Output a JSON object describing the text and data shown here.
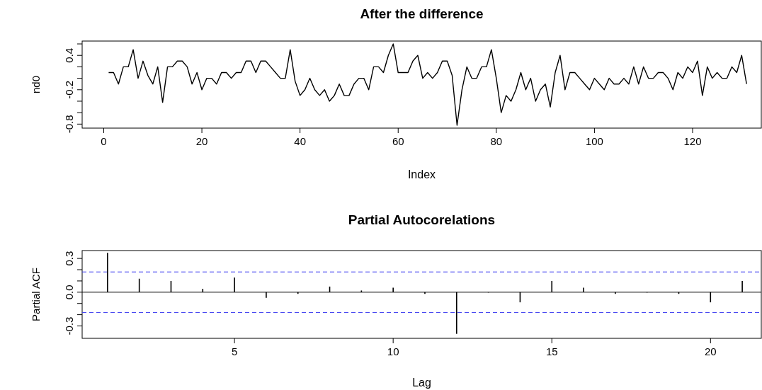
{
  "chart_data": [
    {
      "type": "line",
      "title": "After the difference",
      "xlabel": "Index",
      "ylabel": "nd0",
      "x": [
        1,
        2,
        3,
        4,
        5,
        6,
        7,
        8,
        9,
        10,
        11,
        12,
        13,
        14,
        15,
        16,
        17,
        18,
        19,
        20,
        21,
        22,
        23,
        24,
        25,
        26,
        27,
        28,
        29,
        30,
        31,
        32,
        33,
        34,
        35,
        36,
        37,
        38,
        39,
        40,
        41,
        42,
        43,
        44,
        45,
        46,
        47,
        48,
        49,
        50,
        51,
        52,
        53,
        54,
        55,
        56,
        57,
        58,
        59,
        60,
        61,
        62,
        63,
        64,
        65,
        66,
        67,
        68,
        69,
        70,
        71,
        72,
        73,
        74,
        75,
        76,
        77,
        78,
        79,
        80,
        81,
        82,
        83,
        84,
        85,
        86,
        87,
        88,
        89,
        90,
        91,
        92,
        93,
        94,
        95,
        96,
        97,
        98,
        99,
        100,
        101,
        102,
        103,
        104,
        105,
        106,
        107,
        108,
        109,
        110,
        111,
        112,
        113,
        114,
        115,
        116,
        117,
        118,
        119,
        120,
        121,
        122,
        123,
        124,
        125,
        126,
        127,
        128,
        129,
        130,
        131
      ],
      "series": [
        {
          "color": "#000000",
          "values": [
            0.1,
            0.1,
            -0.1,
            0.2,
            0.2,
            0.5,
            0,
            0.3,
            0.05,
            -0.1,
            0.2,
            -0.42,
            0.2,
            0.2,
            0.3,
            0.3,
            0.2,
            -0.1,
            0.1,
            -0.2,
            0,
            0,
            -0.1,
            0.1,
            0.1,
            0,
            0.1,
            0.1,
            0.3,
            0.3,
            0.1,
            0.3,
            0.3,
            0.2,
            0.1,
            0,
            0,
            0.5,
            -0.05,
            -0.3,
            -0.2,
            0,
            -0.2,
            -0.3,
            -0.2,
            -0.4,
            -0.3,
            -0.1,
            -0.3,
            -0.3,
            -0.1,
            0,
            0,
            -0.2,
            0.2,
            0.2,
            0.1,
            0.4,
            0.6,
            0.1,
            0.1,
            0.1,
            0.3,
            0.4,
            0,
            0.1,
            0,
            0.1,
            0.3,
            0.3,
            0.05,
            -0.82,
            -0.2,
            0.2,
            0,
            0,
            0.2,
            0.2,
            0.5,
            0,
            -0.6,
            -0.3,
            -0.4,
            -0.2,
            0.1,
            -0.2,
            0,
            -0.4,
            -0.2,
            -0.1,
            -0.5,
            0.1,
            0.4,
            -0.2,
            0.1,
            0.1,
            0,
            -0.1,
            -0.2,
            0,
            -0.1,
            -0.2,
            0,
            -0.1,
            -0.1,
            0,
            -0.1,
            0.2,
            -0.1,
            0.2,
            0,
            0,
            0.1,
            0.1,
            0,
            -0.2,
            0.1,
            0,
            0.2,
            0.1,
            0.3,
            -0.3,
            0.2,
            0,
            0.1,
            0,
            0,
            0.2,
            0.1,
            0.4,
            -0.1
          ]
        }
      ],
      "xlim": [
        -4.4,
        134
      ],
      "xticks": [
        0,
        20,
        40,
        60,
        80,
        100,
        120
      ],
      "ylim": [
        -0.87,
        0.65
      ],
      "yticks": [
        {
          "value": -0.8,
          "label": "-0.8"
        },
        {
          "value": -0.6,
          "label": null
        },
        {
          "value": -0.4,
          "label": null
        },
        {
          "value": -0.2,
          "label": "-0.2"
        },
        {
          "value": 0,
          "label": null
        },
        {
          "value": 0.2,
          "label": null
        },
        {
          "value": 0.4,
          "label": "0.4"
        },
        {
          "value": 0.6,
          "label": null
        }
      ]
    },
    {
      "type": "bar",
      "title": "Partial Autocorelations",
      "xlabel": "Lag",
      "ylabel": "Partial ACF",
      "x": [
        1,
        2,
        3,
        4,
        5,
        6,
        7,
        8,
        9,
        10,
        11,
        12,
        13,
        14,
        15,
        16,
        17,
        18,
        19,
        20,
        21
      ],
      "series": [
        {
          "color": "#000000",
          "values": [
            0.35,
            0.12,
            0.1,
            0.03,
            0.13,
            -0.05,
            -0.015,
            0.05,
            0.015,
            0.04,
            -0.015,
            -0.37,
            0,
            -0.09,
            0.1,
            0.04,
            -0.015,
            0,
            -0.015,
            -0.09,
            0.1
          ]
        }
      ],
      "xlim": [
        0.2,
        21.6
      ],
      "xticks": [
        5,
        10,
        15,
        20
      ],
      "ylim": [
        -0.41,
        0.37
      ],
      "yticks": [
        {
          "value": -0.3,
          "label": "-0.3"
        },
        {
          "value": -0.2,
          "label": null
        },
        {
          "value": -0.1,
          "label": null
        },
        {
          "value": 0,
          "label": "0.0"
        },
        {
          "value": 0.1,
          "label": null
        },
        {
          "value": 0.2,
          "label": null
        },
        {
          "value": 0.3,
          "label": "0.3"
        }
      ],
      "ref_lines": [
        {
          "axis": "y",
          "value": 0,
          "color": "#000000",
          "line_style": "solid"
        },
        {
          "axis": "y",
          "value": 0.18,
          "color": "#3b3bf0",
          "line_style": "dashed"
        },
        {
          "axis": "y",
          "value": -0.18,
          "color": "#3b3bf0",
          "line_style": "dashed"
        }
      ]
    }
  ]
}
